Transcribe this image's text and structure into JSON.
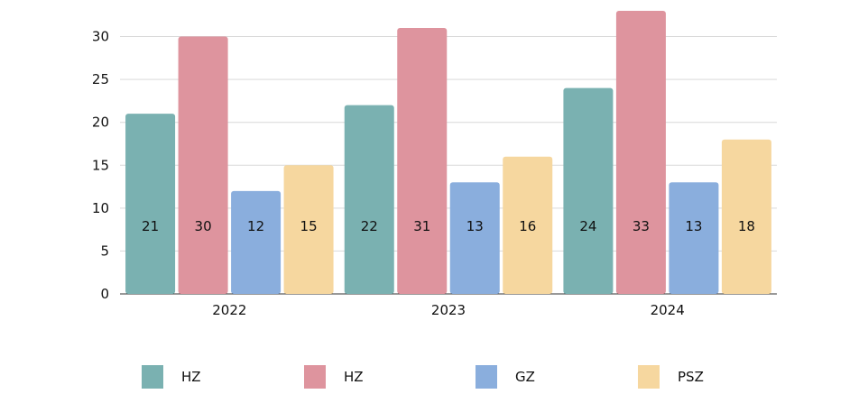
{
  "chart_data": {
    "type": "bar",
    "title": "",
    "xlabel": "",
    "ylabel": "",
    "categories": [
      "2022",
      "2023",
      "2024"
    ],
    "ylim": [
      0,
      33
    ],
    "yticks": [
      0,
      5,
      10,
      15,
      20,
      25,
      30
    ],
    "grid": true,
    "legend_position": "bottom",
    "series": [
      {
        "name": "HZ",
        "color": "#7ab1b1",
        "values": [
          21,
          22,
          24
        ]
      },
      {
        "name": "HZ",
        "color": "#de949e",
        "values": [
          30,
          31,
          33
        ]
      },
      {
        "name": "GZ",
        "color": "#8aaedd",
        "values": [
          12,
          13,
          13
        ]
      },
      {
        "name": "PSZ",
        "color": "#f6d79f",
        "values": [
          15,
          16,
          18
        ]
      }
    ]
  }
}
